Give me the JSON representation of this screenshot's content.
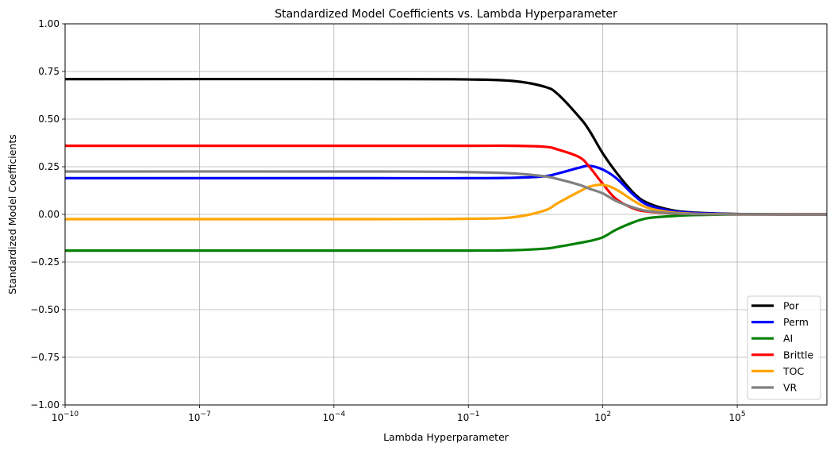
{
  "chart_data": {
    "type": "line",
    "title": "Standardized Model Coefficients vs. Lambda Hyperparameter",
    "xlabel": "Lambda Hyperparameter",
    "ylabel": "Standardized Model Coefficients",
    "xscale": "log",
    "xlim": [
      1e-10,
      10000000.0
    ],
    "ylim": [
      -1.0,
      1.0
    ],
    "grid": true,
    "legend_position": "lower-right",
    "x_ticks": [
      {
        "value": 1e-10,
        "base": "10",
        "exp": "−10"
      },
      {
        "value": 1e-07,
        "base": "10",
        "exp": "−7"
      },
      {
        "value": 0.0001,
        "base": "10",
        "exp": "−4"
      },
      {
        "value": 0.1,
        "base": "10",
        "exp": "−1"
      },
      {
        "value": 100,
        "base": "10",
        "exp": "2"
      },
      {
        "value": 100000,
        "base": "10",
        "exp": "5"
      }
    ],
    "y_ticks": [
      {
        "value": 1.0,
        "label": "1.00"
      },
      {
        "value": 0.75,
        "label": "0.75"
      },
      {
        "value": 0.5,
        "label": "0.50"
      },
      {
        "value": 0.25,
        "label": "0.25"
      },
      {
        "value": 0.0,
        "label": "0.00"
      },
      {
        "value": -0.25,
        "label": "−0.25"
      },
      {
        "value": -0.5,
        "label": "−0.50"
      },
      {
        "value": -0.75,
        "label": "−0.75"
      },
      {
        "value": -1.0,
        "label": "−1.00"
      }
    ],
    "x": [
      1e-10,
      0.001,
      0.1,
      1,
      5,
      10,
      30,
      50,
      100,
      200,
      500,
      1000,
      3000,
      10000,
      100000,
      1000000,
      10000000
    ],
    "series": [
      {
        "name": "Por",
        "color": "#000000",
        "values": [
          0.71,
          0.71,
          0.708,
          0.7,
          0.67,
          0.63,
          0.51,
          0.44,
          0.32,
          0.22,
          0.11,
          0.06,
          0.025,
          0.01,
          0.002,
          0.0,
          0.0
        ]
      },
      {
        "name": "Perm",
        "color": "#0000ff",
        "values": [
          0.19,
          0.19,
          0.19,
          0.192,
          0.2,
          0.215,
          0.245,
          0.255,
          0.235,
          0.19,
          0.1,
          0.05,
          0.02,
          0.008,
          0.001,
          0.0,
          0.0
        ]
      },
      {
        "name": "AI",
        "color": "#008000",
        "values": [
          -0.19,
          -0.19,
          -0.19,
          -0.188,
          -0.18,
          -0.17,
          -0.15,
          -0.14,
          -0.12,
          -0.08,
          -0.04,
          -0.02,
          -0.01,
          -0.004,
          0.0,
          0.0,
          0.0
        ]
      },
      {
        "name": "Brittle",
        "color": "#ff0000",
        "values": [
          0.36,
          0.36,
          0.36,
          0.36,
          0.355,
          0.34,
          0.3,
          0.25,
          0.16,
          0.08,
          0.03,
          0.015,
          0.006,
          0.002,
          0.0,
          0.0,
          0.0
        ]
      },
      {
        "name": "TOC",
        "color": "#ffa500",
        "values": [
          -0.025,
          -0.025,
          -0.023,
          -0.015,
          0.02,
          0.06,
          0.12,
          0.145,
          0.155,
          0.13,
          0.07,
          0.035,
          0.012,
          0.004,
          0.0,
          0.0,
          0.0
        ]
      },
      {
        "name": "VR",
        "color": "#808080",
        "values": [
          0.225,
          0.225,
          0.222,
          0.215,
          0.2,
          0.185,
          0.155,
          0.135,
          0.11,
          0.07,
          0.035,
          0.018,
          0.007,
          0.002,
          0.0,
          0.0,
          0.0
        ]
      }
    ]
  }
}
